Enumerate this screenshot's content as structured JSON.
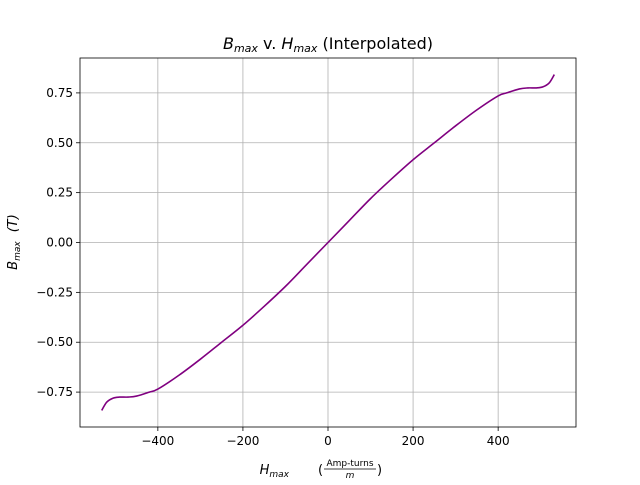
{
  "chart_data": {
    "type": "line",
    "title": {
      "main": "B",
      "main_sub": "max",
      "connector": " v. ",
      "second": "H",
      "second_sub": "max",
      "suffix": " (Interpolated)"
    },
    "xlabel": {
      "main": "H",
      "sub": "max",
      "unit_num": "Amp-turns",
      "unit_den": "m",
      "open": "(",
      "close": ")"
    },
    "ylabel": {
      "main": "B",
      "sub": "max",
      "unit": "(T)"
    },
    "xlim": [
      -583,
      583
    ],
    "ylim": [
      -0.925,
      0.925
    ],
    "xticks": [
      -400,
      -200,
      0,
      200,
      400
    ],
    "xtick_labels": [
      "−400",
      "−200",
      "0",
      "200",
      "400"
    ],
    "yticks": [
      -0.75,
      -0.5,
      -0.25,
      0.0,
      0.25,
      0.5,
      0.75
    ],
    "ytick_labels": [
      "−0.75",
      "−0.50",
      "−0.25",
      "0.00",
      "0.25",
      "0.50",
      "0.75"
    ],
    "grid": true,
    "series": [
      {
        "color": "#800080",
        "x": [
          -532,
          -520,
          -505,
          -490,
          -470,
          -450,
          -420,
          -400,
          -350,
          -300,
          -250,
          -200,
          -150,
          -100,
          -50,
          0,
          50,
          100,
          150,
          200,
          250,
          300,
          350,
          400,
          420,
          450,
          470,
          490,
          505,
          520,
          532
        ],
        "y": [
          -0.842,
          -0.8,
          -0.78,
          -0.775,
          -0.775,
          -0.77,
          -0.75,
          -0.735,
          -0.665,
          -0.585,
          -0.5,
          -0.415,
          -0.32,
          -0.22,
          -0.11,
          0.0,
          0.11,
          0.22,
          0.32,
          0.415,
          0.5,
          0.585,
          0.665,
          0.735,
          0.75,
          0.77,
          0.775,
          0.775,
          0.78,
          0.8,
          0.842
        ]
      }
    ]
  }
}
